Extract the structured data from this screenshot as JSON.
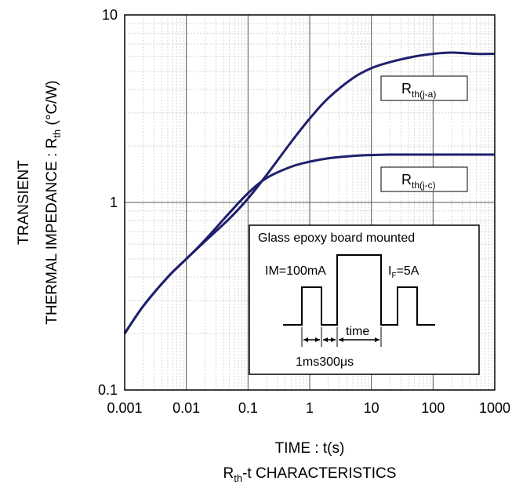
{
  "chart_data": {
    "type": "line",
    "title": "",
    "subtitle": "Rth-t CHARACTERISTICS",
    "subtitle_parts": {
      "r": "R",
      "sub": "th",
      "rest": "-t CHARACTERISTICS"
    },
    "xlabel": "TIME : t(s)",
    "ylabel_line1": "TRANSIENT",
    "ylabel_line2": "THERMAL IMPEDANCE : Rth (°C/W)",
    "ylabel_line2_parts": {
      "pre": "THERMAL IMPEDANCE : R",
      "sub": "th",
      "post": " (°C/W)"
    },
    "xscale": "log",
    "yscale": "log",
    "xlim": [
      0.001,
      1000
    ],
    "ylim": [
      0.1,
      10
    ],
    "grid": true,
    "x_ticks": [
      "0.001",
      "0.01",
      "0.1",
      "1",
      "10",
      "100",
      "1000"
    ],
    "y_ticks": [
      "0.1",
      "1",
      "10"
    ],
    "series": [
      {
        "name": "Rth(j-a)",
        "name_parts": {
          "r": "R",
          "sub": "th(j-a)"
        },
        "color": "#1f1f6e",
        "x": [
          0.001,
          0.002,
          0.005,
          0.01,
          0.02,
          0.05,
          0.1,
          0.2,
          0.5,
          1,
          2,
          5,
          10,
          20,
          50,
          100,
          200,
          500,
          1000
        ],
        "y": [
          0.2,
          0.28,
          0.4,
          0.5,
          0.62,
          0.82,
          1.05,
          1.4,
          2.1,
          2.8,
          3.6,
          4.6,
          5.2,
          5.6,
          6.0,
          6.2,
          6.3,
          6.2,
          6.2
        ]
      },
      {
        "name": "Rth(j-c)",
        "name_parts": {
          "r": "R",
          "sub": "th(j-c)"
        },
        "color": "#1f1f6e",
        "x": [
          0.001,
          0.002,
          0.005,
          0.01,
          0.02,
          0.05,
          0.1,
          0.2,
          0.5,
          1,
          2,
          5,
          10,
          20,
          50,
          100,
          200,
          500,
          1000
        ],
        "y": [
          0.2,
          0.28,
          0.4,
          0.5,
          0.63,
          0.88,
          1.12,
          1.35,
          1.55,
          1.65,
          1.72,
          1.77,
          1.79,
          1.8,
          1.8,
          1.8,
          1.8,
          1.8,
          1.8
        ]
      }
    ],
    "inset": {
      "title": "Glass epoxy board mounted",
      "im_label": "IM=100mA",
      "if_label_parts": {
        "i": "I",
        "sub": "F",
        "rest": "=5A"
      },
      "time_label": "time",
      "bottom_label": "1ms300μs"
    }
  }
}
